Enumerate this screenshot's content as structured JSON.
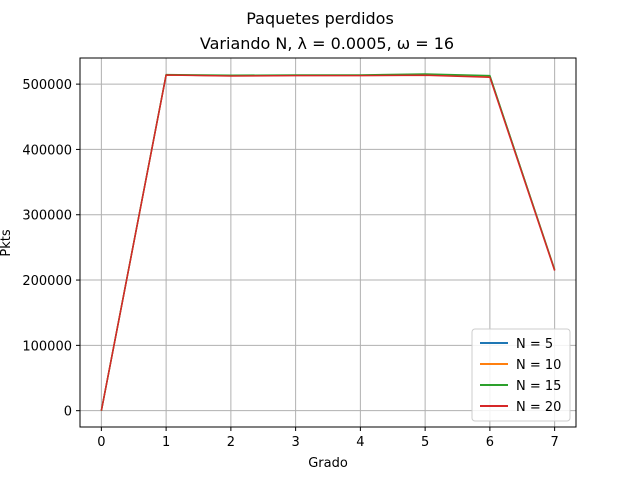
{
  "chart_data": {
    "type": "line",
    "title": "Paquetes perdidos",
    "subtitle": "Variando N, λ = 0.0005, ω = 16",
    "xlabel": "Grado",
    "ylabel": "Pkts",
    "x": [
      0,
      1,
      2,
      3,
      4,
      5,
      6,
      7
    ],
    "xlim": [
      -0.33,
      7.33
    ],
    "ylim": [
      -25000,
      540000
    ],
    "xticks": [
      0,
      1,
      2,
      3,
      4,
      5,
      6,
      7
    ],
    "xtick_labels": [
      "0",
      "1",
      "2",
      "3",
      "4",
      "5",
      "6",
      "7"
    ],
    "yticks": [
      0,
      100000,
      200000,
      300000,
      400000,
      500000
    ],
    "ytick_labels": [
      "0",
      "100000",
      "200000",
      "300000",
      "400000",
      "500000"
    ],
    "grid": true,
    "legend_position": "lower-right",
    "series": [
      {
        "name": "N = 5",
        "color": "#1f77b4",
        "values": [
          0,
          514000,
          513000,
          513500,
          513500,
          514500,
          512000,
          216000
        ]
      },
      {
        "name": "N = 10",
        "color": "#ff7f0e",
        "values": [
          0,
          514000,
          513000,
          513500,
          513500,
          514500,
          512000,
          216000
        ]
      },
      {
        "name": "N = 15",
        "color": "#2ca02c",
        "values": [
          0,
          514500,
          513500,
          514000,
          514000,
          515500,
          513000,
          215500
        ]
      },
      {
        "name": "N = 20",
        "color": "#d62728",
        "values": [
          0,
          514000,
          512500,
          513000,
          513000,
          513500,
          510500,
          214500
        ]
      }
    ]
  }
}
